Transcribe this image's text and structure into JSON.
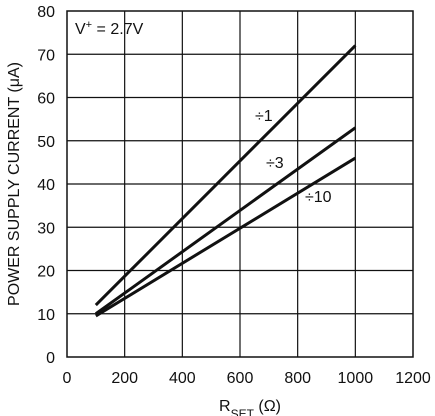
{
  "chart_data": {
    "type": "line",
    "title": "",
    "xlabel_main": "R",
    "xlabel_sub": "SET",
    "xlabel_unit": " (Ω)",
    "ylabel": "POWER SUPPLY CURRENT (μA)",
    "xlim": [
      0,
      1200
    ],
    "ylim": [
      0,
      80
    ],
    "xticks": [
      "0",
      "200",
      "400",
      "600",
      "800",
      "1000",
      "1200"
    ],
    "yticks": [
      "0",
      "10",
      "20",
      "30",
      "40",
      "50",
      "60",
      "70",
      "80"
    ],
    "grid": true,
    "annotations": [
      {
        "text_main": "V",
        "text_sup": "+",
        "text_rest": " = 2.7V"
      }
    ],
    "series": [
      {
        "name": "÷1",
        "x": [
          100,
          1000
        ],
        "y": [
          12,
          72
        ]
      },
      {
        "name": "÷3",
        "x": [
          100,
          1000
        ],
        "y": [
          10,
          53
        ]
      },
      {
        "name": "÷10",
        "x": [
          100,
          1000
        ],
        "y": [
          9.5,
          46
        ]
      }
    ]
  }
}
